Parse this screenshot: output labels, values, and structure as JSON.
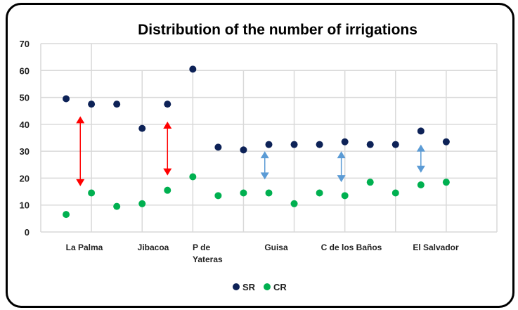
{
  "chart_data": {
    "type": "scatter",
    "title": "Distribution of the number of irrigations",
    "xlabel": "",
    "ylabel": "",
    "ylim": [
      0,
      70
    ],
    "yticks": [
      0,
      10,
      20,
      30,
      40,
      50,
      60,
      70
    ],
    "grid": true,
    "legend_position": "bottom",
    "categories": [
      "La Palma",
      "Jibacoa",
      "P de Yateras",
      "Guisa",
      "C de los Baños",
      "El Salvador"
    ],
    "x": [
      0.5,
      1,
      1.5,
      2,
      2.5,
      3,
      3.5,
      4,
      4.5,
      5,
      5.5,
      6,
      6.5,
      7,
      7.5,
      8
    ],
    "xlim": [
      0,
      9
    ],
    "series": [
      {
        "name": "SR",
        "color": "#0d2257",
        "values": [
          49.5,
          47.5,
          47.5,
          38.5,
          47.5,
          60.5,
          31.5,
          30.5,
          32.5,
          32.5,
          32.5,
          33.5,
          32.5,
          32.5,
          37.5,
          33.5
        ]
      },
      {
        "name": "CR",
        "color": "#00b050",
        "values": [
          6.5,
          14.5,
          9.5,
          10.5,
          15.5,
          20.5,
          13.5,
          14.5,
          14.5,
          10.5,
          14.5,
          13.5,
          18.5,
          14.5,
          17.5,
          18.5
        ]
      }
    ],
    "annotations": [
      {
        "type": "double-arrow",
        "x": 0.78,
        "from": 43,
        "to": 17,
        "color": "#ff0000"
      },
      {
        "type": "double-arrow",
        "x": 2.5,
        "from": 41,
        "to": 21,
        "color": "#ff0000"
      },
      {
        "type": "double-arrow",
        "x": 4.42,
        "from": 30,
        "to": 19.5,
        "color": "#5b9bd5"
      },
      {
        "type": "double-arrow",
        "x": 5.93,
        "from": 30,
        "to": 18.5,
        "color": "#5b9bd5"
      },
      {
        "type": "double-arrow",
        "x": 7.5,
        "from": 32.5,
        "to": 22,
        "color": "#5b9bd5"
      }
    ]
  }
}
